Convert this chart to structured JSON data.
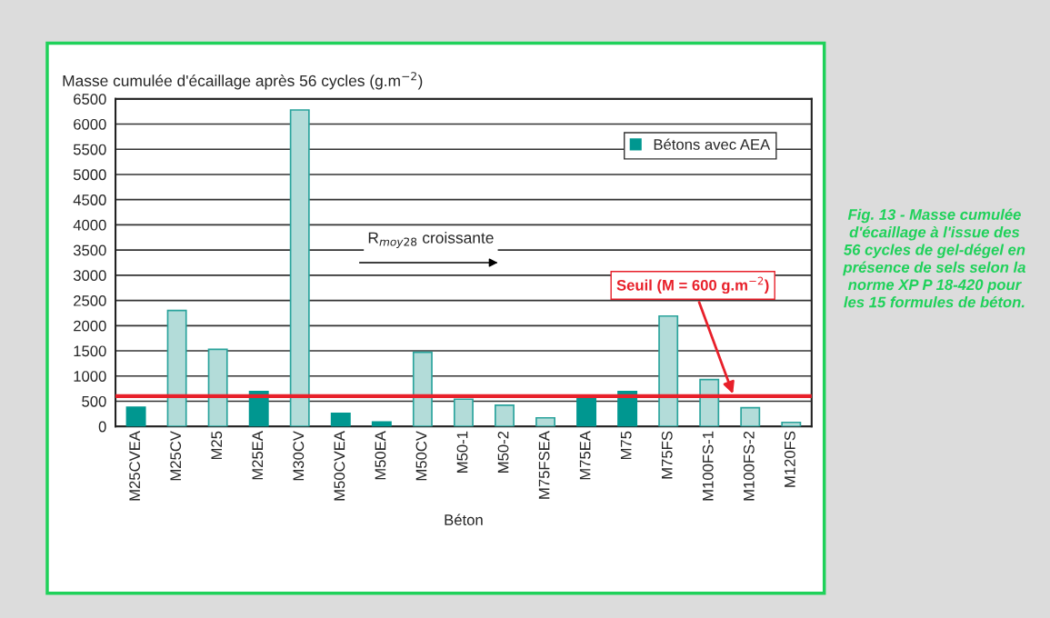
{
  "chart_data": {
    "type": "bar",
    "ylabel": "Masse cumulée d'écaillage après 56 cycles (g.m$^{−2}$)",
    "xlabel": "Béton",
    "categories": [
      "M25CVEA",
      "M25CV",
      "M25",
      "M25EA",
      "M30CV",
      "M50CVEA",
      "M50EA",
      "M50CV",
      "M50-1",
      "M50-2",
      "M75FSEA",
      "M75EA",
      "M75",
      "M75FS",
      "M100FS-1",
      "M100FS-2",
      "M120FS"
    ],
    "series": [
      {
        "name": "Bétons avec AEA",
        "color": "#009790",
        "values": [
          380,
          null,
          null,
          690,
          null,
          260,
          90,
          null,
          null,
          null,
          null,
          600,
          690,
          null,
          null,
          null,
          null
        ]
      },
      {
        "color": "#b3dcd9",
        "values": [
          null,
          2300,
          1530,
          null,
          6280,
          null,
          null,
          1470,
          540,
          420,
          170,
          null,
          null,
          2190,
          930,
          370,
          80
        ]
      }
    ],
    "ylim": [
      0,
      6500
    ],
    "yticks": [
      0,
      500,
      1000,
      1500,
      2000,
      2500,
      3000,
      3500,
      4000,
      4500,
      5000,
      5500,
      6000,
      6500
    ],
    "grid": "y",
    "legend": "top right",
    "ref_lines": [
      {
        "axis": "y",
        "value": 600,
        "label": "Seuil (M = 600 g.m$^{−2}$)",
        "color": "#e8202a"
      }
    ],
    "annotations": [
      "R$_{moy28}$ croissante",
      "Fig. 13 - Masse cumulée d'écaillage à l'issue des 56 cycles de gel-dégel en présence de sels selon la norme XP P 18-420 pour les 15 formules de béton."
    ]
  }
}
